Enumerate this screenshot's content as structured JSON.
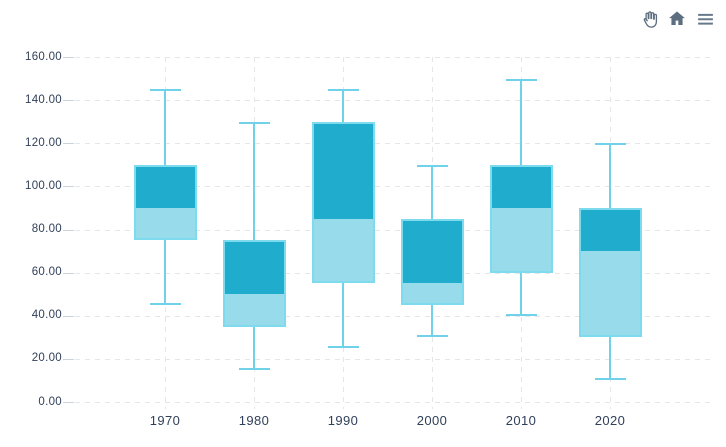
{
  "toolbar": {
    "icons": [
      {
        "name": "pan-tool-icon",
        "glyph": "open-hand"
      },
      {
        "name": "home-icon",
        "glyph": "house"
      },
      {
        "name": "menu-icon",
        "glyph": "hamburger"
      }
    ],
    "icon_color": "#5d6e80"
  },
  "chart_data": {
    "type": "boxplot",
    "title": "",
    "categories": [
      "1970",
      "1980",
      "1990",
      "2000",
      "2010",
      "2020"
    ],
    "points": [
      {
        "category": "1970",
        "low": 45,
        "q1": 75,
        "median": 90,
        "q3": 110,
        "high": 145
      },
      {
        "category": "1980",
        "low": 15,
        "q1": 35,
        "median": 50,
        "q3": 75,
        "high": 130
      },
      {
        "category": "1990",
        "low": 25,
        "q1": 55,
        "median": 85,
        "q3": 130,
        "high": 145
      },
      {
        "category": "2000",
        "low": 30,
        "q1": 45,
        "median": 55,
        "q3": 85,
        "high": 110
      },
      {
        "category": "2010",
        "low": 40,
        "q1": 60,
        "median": 90,
        "q3": 110,
        "high": 150
      },
      {
        "category": "2020",
        "low": 10,
        "q1": 30,
        "median": 70,
        "q3": 90,
        "high": 120
      }
    ],
    "ylim": [
      0,
      160
    ],
    "ytick_values": [
      0,
      20,
      40,
      60,
      80,
      100,
      120,
      140,
      160
    ],
    "ytick_labels": [
      "0.00",
      "20.00",
      "40.00",
      "60.00",
      "80.00",
      "100.00",
      "120.00",
      "140.00",
      "160.00"
    ],
    "grid": true,
    "legend": false,
    "colors": {
      "box_upper": "#20adcd",
      "box_lower": "#98dcec",
      "box_border": "#7edaed",
      "whisker": "#6fd2e9",
      "grid": "#e5e6e8",
      "axis_text": "#31405a",
      "tick": "#ccd2d9"
    }
  }
}
